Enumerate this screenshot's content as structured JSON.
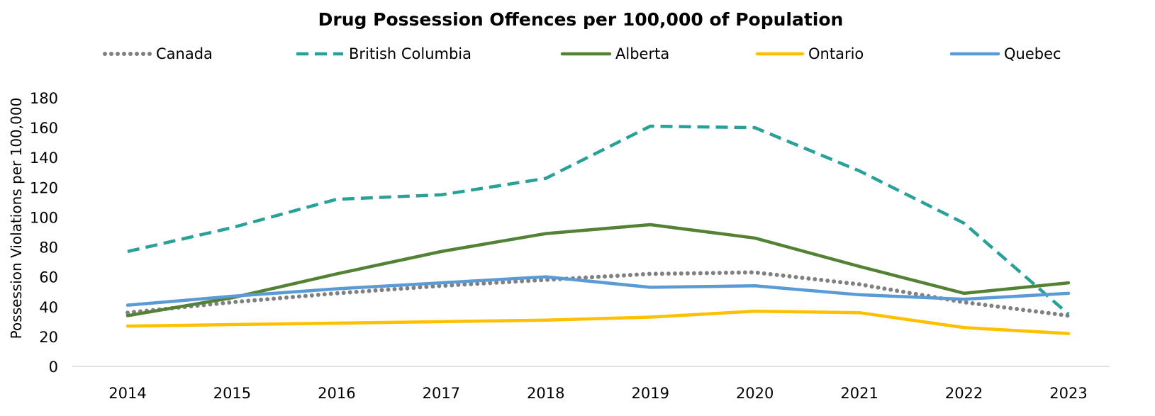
{
  "chart_data": {
    "type": "line",
    "title": "Drug Possession Offences per 100,000 of Population",
    "xlabel": "",
    "ylabel": "Possession Violations per 100,000",
    "ylim": [
      0,
      180
    ],
    "yticks": [
      0,
      20,
      40,
      60,
      80,
      100,
      120,
      140,
      160,
      180
    ],
    "categories": [
      "2014",
      "2015",
      "2016",
      "2017",
      "2018",
      "2019",
      "2020",
      "2021",
      "2022",
      "2023"
    ],
    "grid": false,
    "legend_position": "top",
    "series": [
      {
        "name": "Canada",
        "color": "#808080",
        "style": "dotted",
        "values": [
          36,
          43,
          49,
          54,
          58,
          62,
          63,
          55,
          43,
          34
        ]
      },
      {
        "name": "British Columbia",
        "color": "#2AA198",
        "style": "dashed",
        "values": [
          77,
          93,
          112,
          115,
          126,
          161,
          160,
          131,
          96,
          35
        ]
      },
      {
        "name": "Alberta",
        "color": "#548235",
        "style": "solid",
        "values": [
          34,
          46,
          62,
          77,
          89,
          95,
          86,
          67,
          49,
          56
        ]
      },
      {
        "name": "Ontario",
        "color": "#FFC000",
        "style": "solid",
        "values": [
          27,
          28,
          29,
          30,
          31,
          33,
          37,
          36,
          26,
          22
        ]
      },
      {
        "name": "Quebec",
        "color": "#5B9BD5",
        "style": "solid",
        "values": [
          41,
          47,
          52,
          56,
          60,
          53,
          54,
          48,
          45,
          49
        ]
      }
    ]
  }
}
